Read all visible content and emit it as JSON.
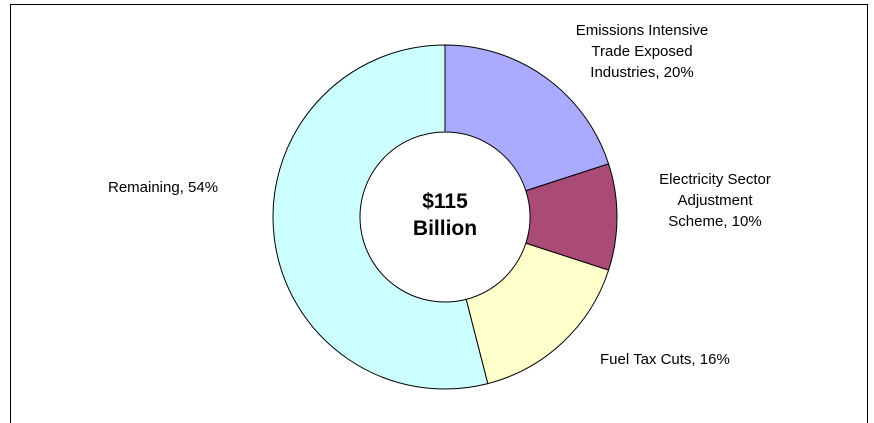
{
  "chart_data": {
    "type": "pie",
    "variant": "donut",
    "center_label_line1": "$115",
    "center_label_line2": "Billion",
    "slices": [
      {
        "label_line1": "Emissions Intensive",
        "label_line2": "Trade Exposed",
        "label_line3": "Industries, 20%",
        "value": 20,
        "color": "#aaaaff"
      },
      {
        "label_line1": "Electricity Sector",
        "label_line2": "Adjustment",
        "label_line3": "Scheme, 10%",
        "value": 10,
        "color": "#aa4a77"
      },
      {
        "label_line1": "Fuel Tax Cuts, 16%",
        "value": 16,
        "color": "#ffffcc"
      },
      {
        "label_line1": "Remaining, 54%",
        "value": 54,
        "color": "#ccffff"
      }
    ],
    "legend": "none",
    "grid": false
  }
}
